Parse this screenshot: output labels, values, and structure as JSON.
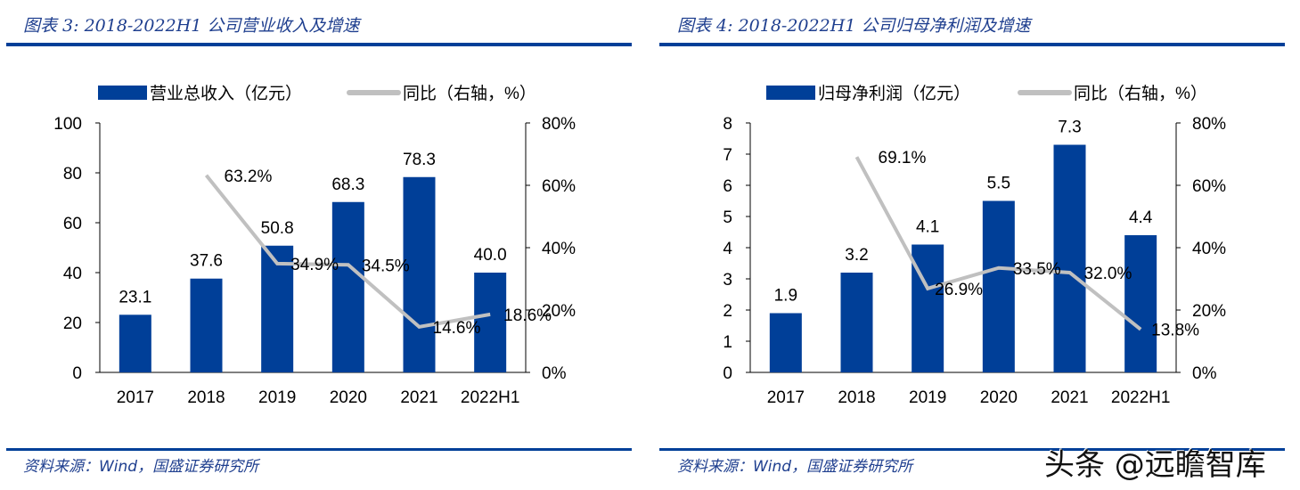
{
  "charts_meta": [
    {
      "title": "图表 3:  2018-2022H1 公司营业收入及增速",
      "source": "资料来源：Wind，国盛证券研究所"
    },
    {
      "title": "图表 4:  2018-2022H1 公司归母净利润及增速",
      "source": "资料来源：Wind，国盛证券研究所"
    }
  ],
  "watermark": "头条 @远瞻智库",
  "colors": {
    "bar": "#003f98",
    "line": "#c0c0c0",
    "rule": "#003f98"
  },
  "chart_data": [
    {
      "type": "bar+line",
      "categories": [
        "2017",
        "2018",
        "2019",
        "2020",
        "2021",
        "2022H1"
      ],
      "series": [
        {
          "name": "营业总收入（亿元）",
          "type": "bar",
          "axis": "left",
          "values": [
            23.1,
            37.6,
            50.8,
            68.3,
            78.3,
            40.0
          ],
          "labels": [
            "23.1",
            "37.6",
            "50.8",
            "68.3",
            "78.3",
            "40.0"
          ]
        },
        {
          "name": "同比（右轴，%）",
          "type": "line",
          "axis": "right",
          "values": [
            null,
            63.2,
            34.9,
            34.5,
            14.6,
            18.6
          ],
          "labels": [
            "",
            "63.2%",
            "34.9%",
            "34.5%",
            "14.6%",
            "18.6%"
          ]
        }
      ],
      "ylim": [
        0,
        100
      ],
      "yticks": [
        "0",
        "20",
        "40",
        "60",
        "80",
        "100"
      ],
      "y2lim": [
        0,
        80
      ],
      "y2ticks": [
        "0%",
        "20%",
        "40%",
        "60%",
        "80%"
      ],
      "legend": "top",
      "grid": false
    },
    {
      "type": "bar+line",
      "categories": [
        "2017",
        "2018",
        "2019",
        "2020",
        "2021",
        "2022H1"
      ],
      "series": [
        {
          "name": "归母净利润（亿元）",
          "type": "bar",
          "axis": "left",
          "values": [
            1.9,
            3.2,
            4.1,
            5.5,
            7.3,
            4.4
          ],
          "labels": [
            "1.9",
            "3.2",
            "4.1",
            "5.5",
            "7.3",
            "4.4"
          ]
        },
        {
          "name": "同比（右轴，%）",
          "type": "line",
          "axis": "right",
          "values": [
            null,
            69.1,
            26.9,
            33.5,
            32.0,
            13.8
          ],
          "labels": [
            "",
            "69.1%",
            "26.9%",
            "33.5%",
            "32.0%",
            "13.8%"
          ]
        }
      ],
      "ylim": [
        0,
        8
      ],
      "yticks": [
        "0",
        "1",
        "2",
        "3",
        "4",
        "5",
        "6",
        "7",
        "8"
      ],
      "y2lim": [
        0,
        80
      ],
      "y2ticks": [
        "0%",
        "20%",
        "40%",
        "60%",
        "80%"
      ],
      "legend": "top",
      "grid": false
    }
  ]
}
